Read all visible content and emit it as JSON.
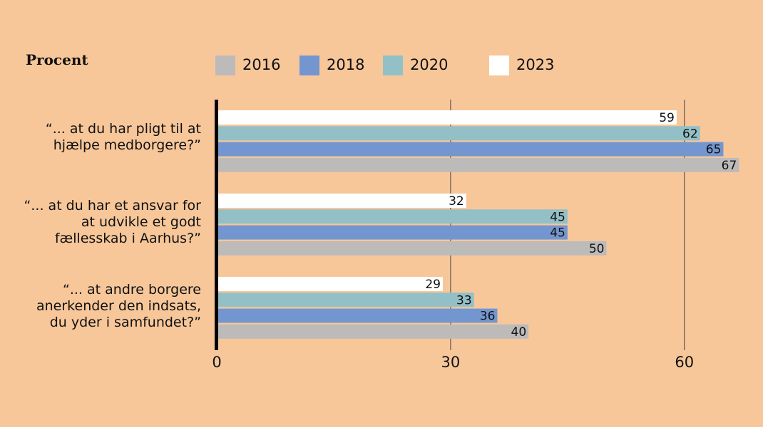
{
  "unit_label": "Procent",
  "legend": [
    {
      "label": "2016",
      "color": "#bdbaba"
    },
    {
      "label": "2018",
      "color": "#7496d0"
    },
    {
      "label": "2020",
      "color": "#92c0c6"
    },
    {
      "label": "2023",
      "color": "#ffffff"
    }
  ],
  "chart_data": {
    "type": "bar",
    "orientation": "horizontal",
    "ylabel": "Procent",
    "categories": [
      [
        "“... at du har pligt til at",
        "hjælpe medborgere?”"
      ],
      [
        "“... at du har et ansvar for",
        "at udvikle et godt",
        "fællesskab i Aarhus?”"
      ],
      [
        "“... at andre borgere",
        "anerkender den indsats,",
        "du yder i samfundet?”"
      ]
    ],
    "series": [
      {
        "name": "2023",
        "color": "#ffffff",
        "values": [
          59,
          32,
          29
        ]
      },
      {
        "name": "2020",
        "color": "#92c0c6",
        "values": [
          62,
          45,
          33
        ]
      },
      {
        "name": "2018",
        "color": "#7496d0",
        "values": [
          65,
          45,
          36
        ]
      },
      {
        "name": "2016",
        "color": "#bdbaba",
        "values": [
          67,
          50,
          40
        ]
      }
    ],
    "xlim": [
      0,
      70
    ],
    "xticks": [
      0,
      30,
      60
    ],
    "grid": true,
    "data_labels": true,
    "legend_position": "top"
  }
}
